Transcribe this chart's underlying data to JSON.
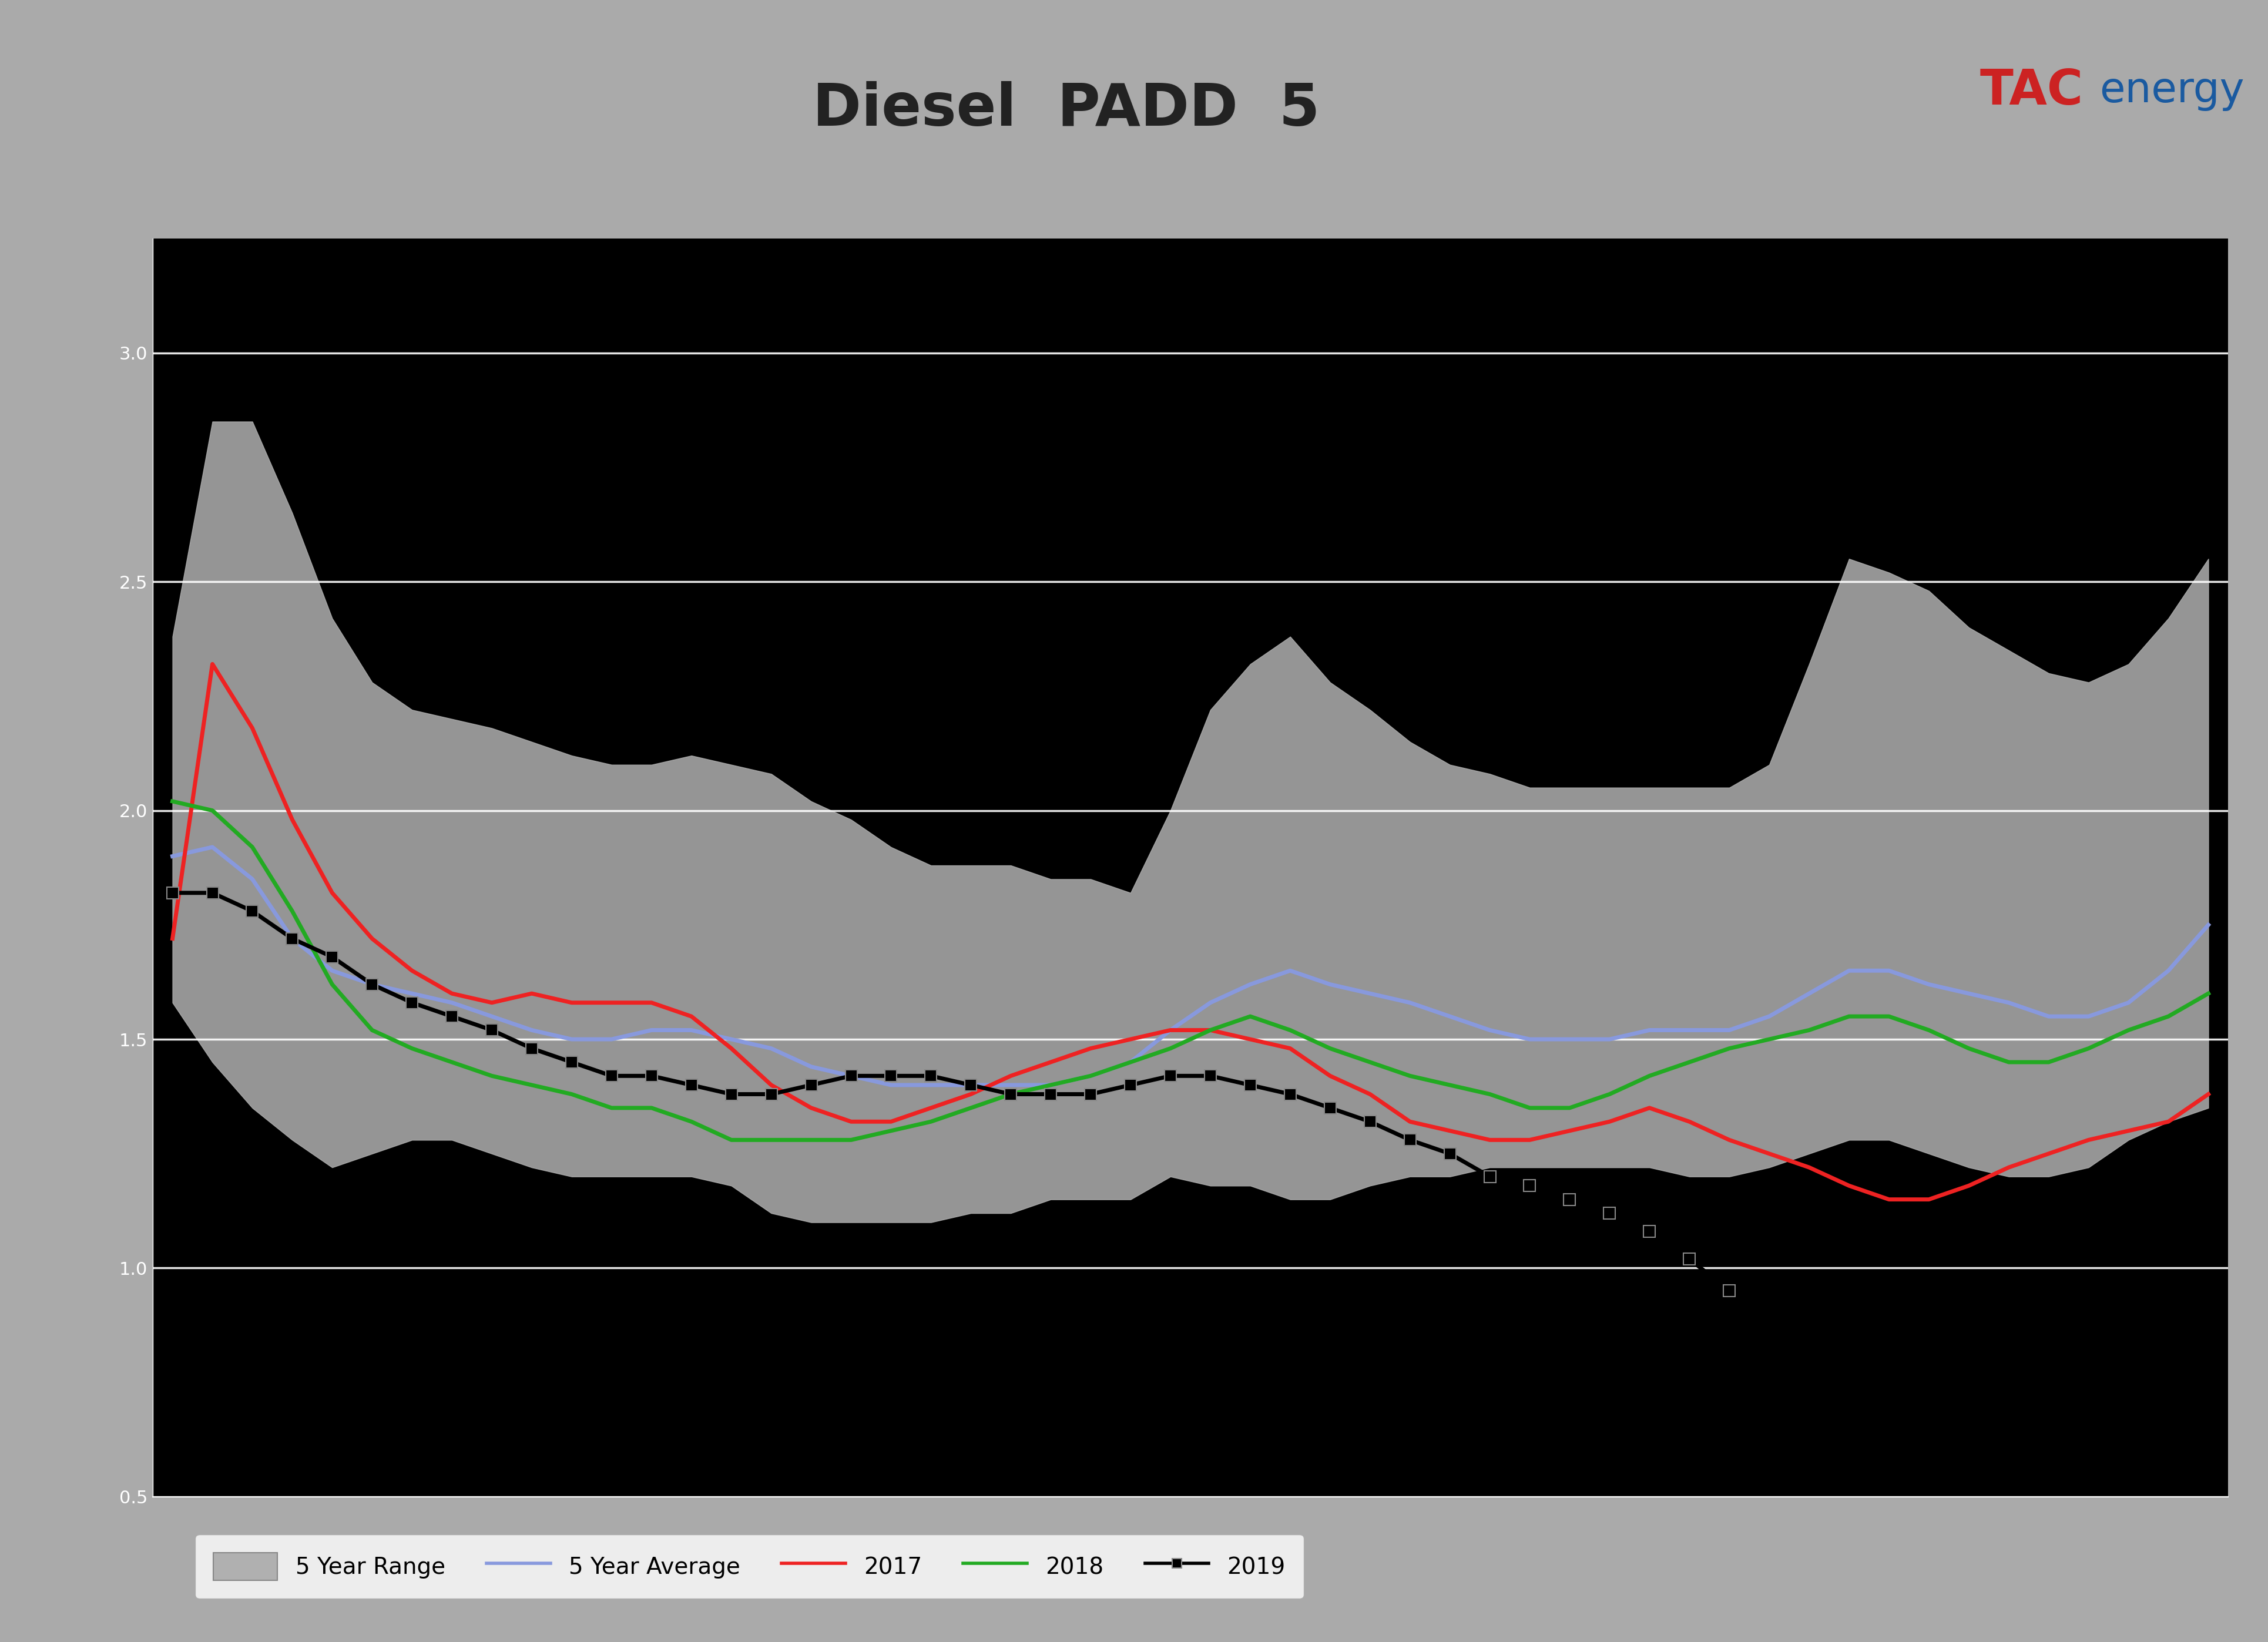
{
  "title": "Diesel  PADD  5",
  "title_fontsize": 72,
  "title_color": "#222222",
  "header_bg_color": "#aaaaaa",
  "blue_bar_color": "#1a5faa",
  "plot_bg_color": "#000000",
  "outer_bg_color": "#aaaaaa",
  "grid_color": "#ffffff",
  "grid_alpha": 0.9,
  "grid_linewidth": 2.5,
  "n_points": 52,
  "range_low": [
    1.58,
    1.45,
    1.35,
    1.28,
    1.22,
    1.25,
    1.28,
    1.28,
    1.25,
    1.22,
    1.2,
    1.2,
    1.2,
    1.2,
    1.18,
    1.12,
    1.1,
    1.1,
    1.1,
    1.1,
    1.12,
    1.12,
    1.15,
    1.15,
    1.15,
    1.2,
    1.18,
    1.18,
    1.15,
    1.15,
    1.18,
    1.2,
    1.2,
    1.22,
    1.22,
    1.22,
    1.22,
    1.22,
    1.2,
    1.2,
    1.22,
    1.25,
    1.28,
    1.28,
    1.25,
    1.22,
    1.2,
    1.2,
    1.22,
    1.28,
    1.32,
    1.35
  ],
  "range_high": [
    2.38,
    2.85,
    2.85,
    2.65,
    2.42,
    2.28,
    2.22,
    2.2,
    2.18,
    2.15,
    2.12,
    2.1,
    2.1,
    2.12,
    2.1,
    2.08,
    2.02,
    1.98,
    1.92,
    1.88,
    1.88,
    1.88,
    1.85,
    1.85,
    1.82,
    2.0,
    2.22,
    2.32,
    2.38,
    2.28,
    2.22,
    2.15,
    2.1,
    2.08,
    2.05,
    2.05,
    2.05,
    2.05,
    2.05,
    2.05,
    2.1,
    2.32,
    2.55,
    2.52,
    2.48,
    2.4,
    2.35,
    2.3,
    2.28,
    2.32,
    2.42,
    2.55
  ],
  "avg_5yr": [
    1.9,
    1.92,
    1.85,
    1.72,
    1.65,
    1.62,
    1.6,
    1.58,
    1.55,
    1.52,
    1.5,
    1.5,
    1.52,
    1.52,
    1.5,
    1.48,
    1.44,
    1.42,
    1.4,
    1.4,
    1.4,
    1.4,
    1.4,
    1.42,
    1.45,
    1.52,
    1.58,
    1.62,
    1.65,
    1.62,
    1.6,
    1.58,
    1.55,
    1.52,
    1.5,
    1.5,
    1.5,
    1.52,
    1.52,
    1.52,
    1.55,
    1.6,
    1.65,
    1.65,
    1.62,
    1.6,
    1.58,
    1.55,
    1.55,
    1.58,
    1.65,
    1.75
  ],
  "line_2017": [
    1.72,
    2.32,
    2.18,
    1.98,
    1.82,
    1.72,
    1.65,
    1.6,
    1.58,
    1.6,
    1.58,
    1.58,
    1.58,
    1.55,
    1.48,
    1.4,
    1.35,
    1.32,
    1.32,
    1.35,
    1.38,
    1.42,
    1.45,
    1.48,
    1.5,
    1.52,
    1.52,
    1.5,
    1.48,
    1.42,
    1.38,
    1.32,
    1.3,
    1.28,
    1.28,
    1.3,
    1.32,
    1.35,
    1.32,
    1.28,
    1.25,
    1.22,
    1.18,
    1.15,
    1.15,
    1.18,
    1.22,
    1.25,
    1.28,
    1.3,
    1.32,
    1.38
  ],
  "line_2018": [
    2.02,
    2.0,
    1.92,
    1.78,
    1.62,
    1.52,
    1.48,
    1.45,
    1.42,
    1.4,
    1.38,
    1.35,
    1.35,
    1.32,
    1.28,
    1.28,
    1.28,
    1.28,
    1.3,
    1.32,
    1.35,
    1.38,
    1.4,
    1.42,
    1.45,
    1.48,
    1.52,
    1.55,
    1.52,
    1.48,
    1.45,
    1.42,
    1.4,
    1.38,
    1.35,
    1.35,
    1.38,
    1.42,
    1.45,
    1.48,
    1.5,
    1.52,
    1.55,
    1.55,
    1.52,
    1.48,
    1.45,
    1.45,
    1.48,
    1.52,
    1.55,
    1.6
  ],
  "line_2019": [
    1.82,
    1.82,
    1.78,
    1.72,
    1.68,
    1.62,
    1.58,
    1.55,
    1.52,
    1.48,
    1.45,
    1.42,
    1.42,
    1.4,
    1.38,
    1.38,
    1.4,
    1.42,
    1.42,
    1.42,
    1.4,
    1.38,
    1.38,
    1.38,
    1.4,
    1.42,
    1.42,
    1.4,
    1.38,
    1.35,
    1.32,
    1.28,
    1.25,
    1.2,
    1.18,
    1.15,
    1.12,
    1.08,
    1.02,
    0.95,
    null,
    null,
    null,
    null,
    null,
    null,
    null,
    null,
    null,
    null,
    null,
    null
  ],
  "ylim_low": 0.75,
  "ylim_high": 3.25,
  "ytick_values": [
    0.5,
    1.0,
    1.5,
    2.0,
    2.5,
    3.0
  ],
  "ytick_visible": [
    false,
    true,
    true,
    true,
    true,
    true
  ],
  "range_color": "#b0b0b0",
  "range_alpha": 0.85,
  "avg_color": "#8899dd",
  "color_2017": "#ee2222",
  "color_2018": "#22aa22",
  "color_2019": "#000000",
  "linewidth": 5,
  "marker_2019": "s",
  "marker_size": 14,
  "marker_edge_color": "#888888",
  "legend_labels": [
    "5 Year Range",
    "5 Year Average",
    "2017",
    "2018",
    "2019"
  ],
  "tac_color_tac": "#cc2222",
  "tac_color_energy": "#1a5aa0",
  "tac_fontsize": 60
}
